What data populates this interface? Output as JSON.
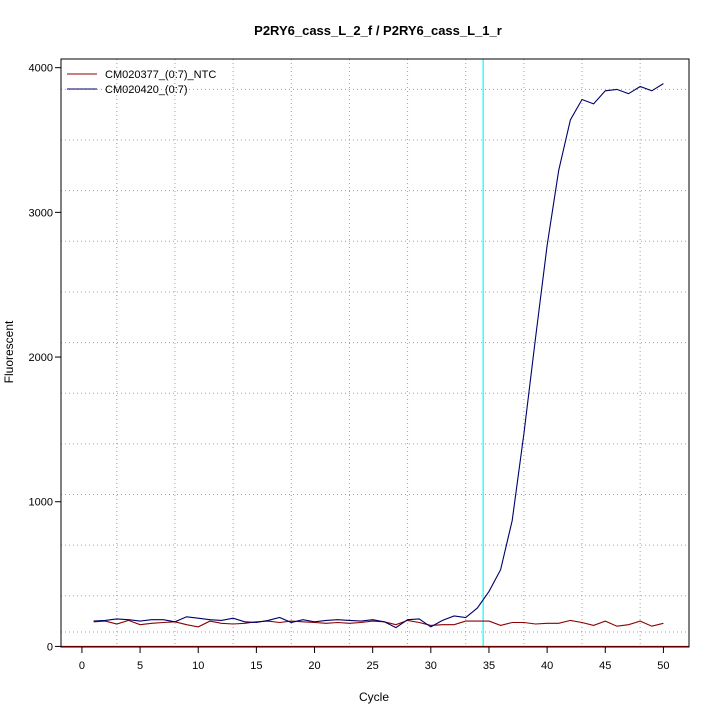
{
  "chart_data": {
    "type": "line",
    "title": "P2RY6_cass_L_2_f / P2RY6_cass_L_1_r",
    "xlabel": "Cycle",
    "ylabel": "Fluorescent",
    "xlim": [
      -1.8,
      52.2
    ],
    "ylim": [
      -4,
      4060
    ],
    "x_ticks": [
      0,
      5,
      10,
      15,
      20,
      25,
      30,
      35,
      40,
      45,
      50
    ],
    "y_ticks": [
      0,
      1000,
      2000,
      3000,
      4000
    ],
    "x_grid": [
      3,
      8,
      13,
      18,
      23,
      28,
      33,
      38,
      43,
      48
    ],
    "y_grid": [
      100,
      350,
      700,
      1050,
      1400,
      1750,
      2100,
      2450,
      2800,
      3150,
      3500,
      3850
    ],
    "grid": true,
    "legend_position": "top-left",
    "threshold": {
      "x": 34.5,
      "color": "#00ffff"
    },
    "baseline": {
      "y": 0,
      "color": "#cc0000"
    },
    "x": [
      1,
      2,
      3,
      4,
      5,
      6,
      7,
      8,
      9,
      10,
      11,
      12,
      13,
      14,
      15,
      16,
      17,
      18,
      19,
      20,
      21,
      22,
      23,
      24,
      25,
      26,
      27,
      28,
      29,
      30,
      31,
      32,
      33,
      34,
      35,
      36,
      37,
      38,
      39,
      40,
      41,
      42,
      43,
      44,
      45,
      46,
      47,
      48,
      49,
      50
    ],
    "series": [
      {
        "name": "CM020377_(0:7)_NTC",
        "color": "#8b0000",
        "values": [
          170,
          175,
          155,
          180,
          150,
          160,
          165,
          170,
          150,
          135,
          175,
          160,
          155,
          160,
          170,
          175,
          165,
          175,
          170,
          165,
          160,
          165,
          160,
          165,
          175,
          170,
          150,
          180,
          165,
          145,
          150,
          150,
          175,
          175,
          175,
          145,
          165,
          165,
          155,
          160,
          160,
          180,
          165,
          145,
          175,
          140,
          150,
          175,
          140,
          160
        ]
      },
      {
        "name": "CM020420_(0:7)",
        "color": "#00006b",
        "values": [
          175,
          180,
          190,
          185,
          175,
          185,
          185,
          170,
          205,
          195,
          185,
          180,
          195,
          170,
          165,
          180,
          200,
          165,
          185,
          170,
          180,
          185,
          180,
          175,
          185,
          170,
          130,
          185,
          190,
          135,
          180,
          210,
          200,
          265,
          380,
          530,
          870,
          1470,
          2130,
          2770,
          3290,
          3640,
          3780,
          3750,
          3840,
          3850,
          3820,
          3870,
          3840,
          3890
        ]
      }
    ]
  }
}
